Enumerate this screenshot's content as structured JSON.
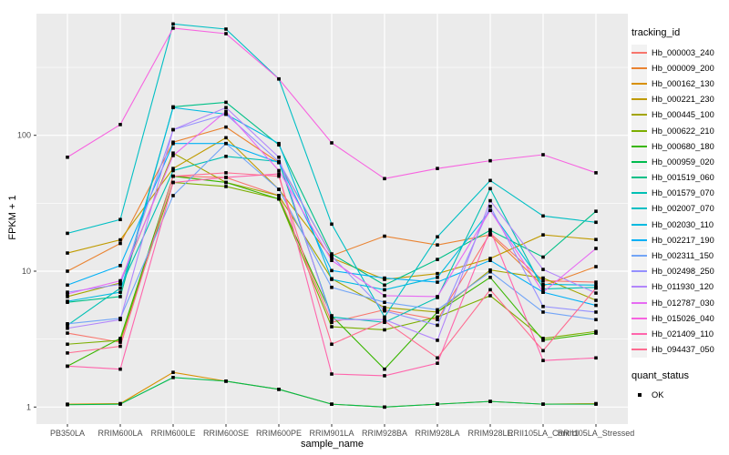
{
  "figure": {
    "background": "#FFFFFF",
    "panel_background": "#EBEBEB",
    "gridline_color": "#FFFFFF",
    "tick_label_color": "#4D4D4D",
    "axis_title_color": "#000000",
    "marker_color": "#000000"
  },
  "chart_data": {
    "type": "line",
    "title": "",
    "xlabel": "sample_name",
    "ylabel": "FPKM + 1",
    "y_scale": "log10",
    "grid": true,
    "legend_position": "right",
    "ylim": [
      0.76,
      780
    ],
    "y_tick_values": [
      1,
      10,
      100
    ],
    "y_tick_labels": [
      "1",
      "10",
      "100"
    ],
    "y_minor_values": [
      3.162,
      31.62,
      316.2
    ],
    "categories": [
      "PB350LA",
      "RRIM600LA",
      "RRIM600LE",
      "RRIM600SE",
      "RRIM600PE",
      "RRIM901LA",
      "RRIM928BA",
      "RRIM928LA",
      "RRIM928LE",
      "RRII105LA_Control",
      "RRII105LA_Stressed"
    ],
    "legend": {
      "title": "tracking_id"
    },
    "legend2": {
      "title": "quant_status",
      "items": [
        {
          "label": "OK",
          "marker": "black-square"
        }
      ]
    },
    "series": [
      {
        "name": "Hb_000003_240",
        "color": "#F8766D",
        "values": [
          3.5,
          3.0,
          50,
          49,
          36,
          4.2,
          5.2,
          4.4,
          19,
          8.5,
          8.3
        ]
      },
      {
        "name": "Hb_000009_200",
        "color": "#EA8331",
        "values": [
          10,
          16,
          89,
          115,
          63,
          13,
          18.1,
          15.6,
          18.5,
          7.8,
          10.8
        ]
      },
      {
        "name": "Hb_000162_130",
        "color": "#D89000",
        "values": [
          1.05,
          1.06,
          1.8,
          1.55,
          1.35,
          1.05,
          1.0,
          1.05,
          1.1,
          1.05,
          1.06
        ]
      },
      {
        "name": "Hb_000221_230",
        "color": "#C09B00",
        "values": [
          13.6,
          17,
          57,
          96,
          40,
          12.5,
          8.7,
          9.6,
          12.4,
          18.5,
          17.1
        ]
      },
      {
        "name": "Hb_000445_100",
        "color": "#A3A500",
        "values": [
          6.5,
          8.2,
          74,
          45,
          36,
          8.8,
          5.4,
          5.0,
          10.2,
          8.9,
          6.1
        ]
      },
      {
        "name": "Hb_000622_210",
        "color": "#7CAE00",
        "values": [
          2.9,
          3.1,
          45,
          42,
          34,
          3.9,
          3.7,
          4.6,
          6.6,
          3.2,
          3.6
        ]
      },
      {
        "name": "Hb_000680_180",
        "color": "#39B600",
        "values": [
          2.0,
          3.2,
          50,
          45,
          34,
          4.7,
          1.9,
          5.0,
          9.0,
          3.1,
          3.5
        ]
      },
      {
        "name": "Hb_000959_020",
        "color": "#00BB4E",
        "values": [
          1.04,
          1.05,
          1.65,
          1.55,
          1.35,
          1.05,
          1.0,
          1.05,
          1.1,
          1.05,
          1.05
        ]
      },
      {
        "name": "Hb_001519_060",
        "color": "#00C087",
        "values": [
          5.9,
          6.5,
          162,
          175,
          85,
          13.4,
          7.9,
          12.2,
          20,
          12.7,
          27.6
        ]
      },
      {
        "name": "Hb_001579_070",
        "color": "#00C0B4",
        "values": [
          4.0,
          7.5,
          55,
          70,
          64,
          4.6,
          4.2,
          6.4,
          40.5,
          7.4,
          7.6
        ]
      },
      {
        "name": "Hb_002007_070",
        "color": "#00BFC4",
        "values": [
          19,
          24,
          660,
          605,
          260,
          22.2,
          4.6,
          17.9,
          46.5,
          25.5,
          22.9
        ]
      },
      {
        "name": "Hb_002030_110",
        "color": "#00BAE0",
        "values": [
          6.0,
          7.0,
          160,
          143,
          87,
          8.7,
          7.3,
          9.0,
          28,
          8.0,
          7.9
        ]
      },
      {
        "name": "Hb_002217_190",
        "color": "#00B0F6",
        "values": [
          7.9,
          11,
          87,
          87,
          63,
          10.1,
          8.9,
          8.3,
          12.0,
          7.0,
          5.6
        ]
      },
      {
        "name": "Hb_002311_150",
        "color": "#72A5F7",
        "values": [
          4.1,
          4.5,
          36,
          87,
          40,
          7.6,
          5.9,
          5.2,
          9.9,
          5.0,
          4.4
        ]
      },
      {
        "name": "Hb_002498_250",
        "color": "#9590FF",
        "values": [
          7.0,
          8.0,
          110,
          143,
          64,
          12.9,
          5.1,
          4.0,
          30,
          5.5,
          5.0
        ]
      },
      {
        "name": "Hb_011930_120",
        "color": "#B286FB",
        "values": [
          3.8,
          4.4,
          110,
          160,
          69,
          4.4,
          4.4,
          3.1,
          33,
          10.3,
          6.9
        ]
      },
      {
        "name": "Hb_012787_030",
        "color": "#E76BF3",
        "values": [
          6.8,
          8.5,
          71,
          150,
          55,
          12.0,
          6.6,
          6.5,
          28,
          7.0,
          14.7
        ]
      },
      {
        "name": "Hb_015026_040",
        "color": "#F763E0",
        "values": [
          69,
          120,
          615,
          560,
          260,
          88,
          48,
          57,
          65,
          72,
          53
        ]
      },
      {
        "name": "Hb_021409_110",
        "color": "#FF65AC",
        "values": [
          2.0,
          1.9,
          45,
          49,
          52,
          1.75,
          1.7,
          2.1,
          20.2,
          2.2,
          2.3
        ]
      },
      {
        "name": "Hb_094437_050",
        "color": "#FF6C91",
        "values": [
          2.5,
          2.8,
          50,
          53,
          50,
          2.9,
          4.3,
          2.3,
          7.3,
          2.6,
          7.5
        ]
      }
    ]
  }
}
